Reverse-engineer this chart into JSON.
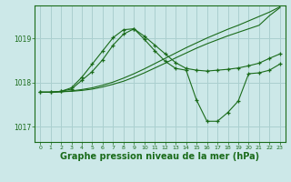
{
  "background_color": "#cce8e8",
  "grid_color": "#aacfcf",
  "line_color": "#1a6b1a",
  "marker_color": "#1a6b1a",
  "xlabel": "Graphe pression niveau de la mer (hPa)",
  "xlabel_fontsize": 7.0,
  "xlim": [
    -0.5,
    23.5
  ],
  "ylim": [
    1016.65,
    1019.75
  ],
  "yticks": [
    1017,
    1018,
    1019
  ],
  "xticks": [
    0,
    1,
    2,
    3,
    4,
    5,
    6,
    7,
    8,
    9,
    10,
    11,
    12,
    13,
    14,
    15,
    16,
    17,
    18,
    19,
    20,
    21,
    22,
    23
  ],
  "series": [
    {
      "x": [
        0,
        1,
        2,
        3,
        4,
        5,
        6,
        7,
        8,
        9,
        10,
        11,
        12,
        13,
        14,
        15,
        16,
        17,
        18,
        19,
        20,
        21,
        22,
        23
      ],
      "y": [
        1017.78,
        1017.78,
        1017.79,
        1017.8,
        1017.82,
        1017.85,
        1017.9,
        1017.96,
        1018.03,
        1018.12,
        1018.22,
        1018.33,
        1018.44,
        1018.56,
        1018.67,
        1018.78,
        1018.88,
        1018.97,
        1019.06,
        1019.14,
        1019.22,
        1019.3,
        1019.52,
        1019.7
      ],
      "has_markers": false
    },
    {
      "x": [
        0,
        1,
        2,
        3,
        4,
        5,
        6,
        7,
        8,
        9,
        10,
        11,
        12,
        13,
        14,
        15,
        16,
        17,
        18,
        19,
        20,
        21,
        22,
        23
      ],
      "y": [
        1017.78,
        1017.78,
        1017.79,
        1017.81,
        1017.84,
        1017.88,
        1017.94,
        1018.01,
        1018.1,
        1018.2,
        1018.31,
        1018.43,
        1018.55,
        1018.67,
        1018.79,
        1018.9,
        1019.01,
        1019.11,
        1019.21,
        1019.3,
        1019.4,
        1019.5,
        1019.6,
        1019.72
      ],
      "has_markers": false
    },
    {
      "x": [
        0,
        1,
        2,
        3,
        4,
        5,
        6,
        7,
        8,
        9,
        10,
        11,
        12,
        13,
        14,
        15,
        16,
        17,
        18,
        19,
        20,
        21,
        22,
        23
      ],
      "y": [
        1017.78,
        1017.78,
        1017.8,
        1017.85,
        1018.05,
        1018.25,
        1018.52,
        1018.85,
        1019.1,
        1019.22,
        1019.05,
        1018.85,
        1018.65,
        1018.45,
        1018.32,
        1018.28,
        1018.26,
        1018.28,
        1018.3,
        1018.33,
        1018.38,
        1018.44,
        1018.55,
        1018.65
      ],
      "has_markers": true
    },
    {
      "x": [
        0,
        1,
        2,
        3,
        4,
        5,
        6,
        7,
        8,
        9,
        10,
        11,
        12,
        13,
        14,
        15,
        16,
        17,
        18,
        19,
        20,
        21,
        22,
        23
      ],
      "y": [
        1017.78,
        1017.78,
        1017.8,
        1017.88,
        1018.12,
        1018.42,
        1018.72,
        1019.02,
        1019.2,
        1019.22,
        1018.98,
        1018.72,
        1018.48,
        1018.32,
        1018.28,
        1017.6,
        1017.12,
        1017.12,
        1017.32,
        1017.58,
        1018.2,
        1018.22,
        1018.28,
        1018.42
      ],
      "has_markers": true
    }
  ]
}
